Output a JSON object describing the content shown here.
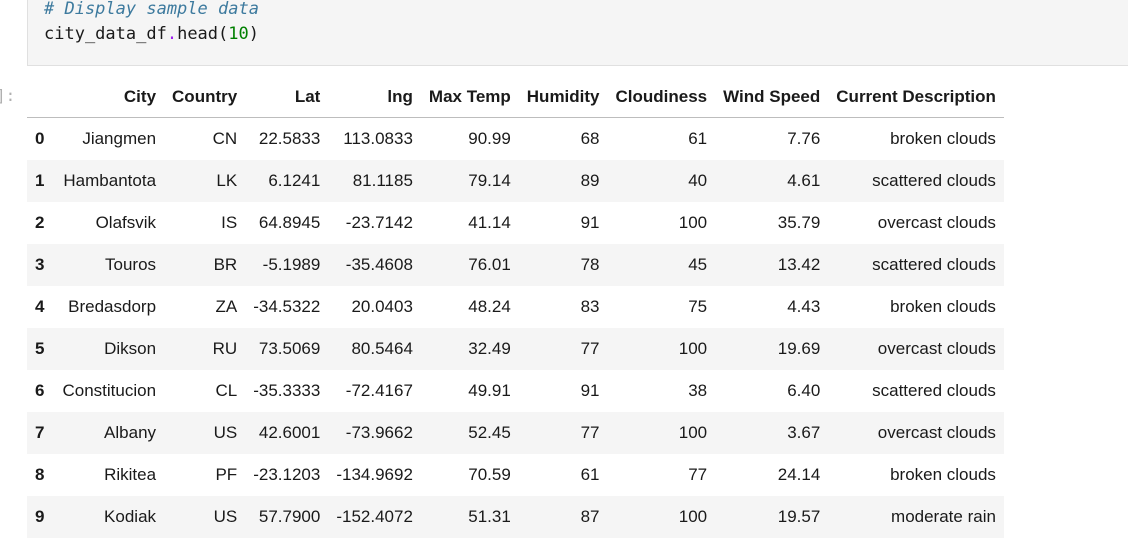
{
  "code_cell": {
    "comment": "# Display sample data",
    "line_var": "city_data_df",
    "line_dot": ".",
    "line_call": "head(",
    "line_arg": "10",
    "line_close": ")"
  },
  "output_prompt": "]:",
  "table": {
    "columns": [
      "",
      "City",
      "Country",
      "Lat",
      "lng",
      "Max Temp",
      "Humidity",
      "Cloudiness",
      "Wind Speed",
      "Current Description"
    ],
    "rows": [
      [
        "0",
        "Jiangmen",
        "CN",
        "22.5833",
        "113.0833",
        "90.99",
        "68",
        "61",
        "7.76",
        "broken clouds"
      ],
      [
        "1",
        "Hambantota",
        "LK",
        "6.1241",
        "81.1185",
        "79.14",
        "89",
        "40",
        "4.61",
        "scattered clouds"
      ],
      [
        "2",
        "Olafsvik",
        "IS",
        "64.8945",
        "-23.7142",
        "41.14",
        "91",
        "100",
        "35.79",
        "overcast clouds"
      ],
      [
        "3",
        "Touros",
        "BR",
        "-5.1989",
        "-35.4608",
        "76.01",
        "78",
        "45",
        "13.42",
        "scattered clouds"
      ],
      [
        "4",
        "Bredasdorp",
        "ZA",
        "-34.5322",
        "20.0403",
        "48.24",
        "83",
        "75",
        "4.43",
        "broken clouds"
      ],
      [
        "5",
        "Dikson",
        "RU",
        "73.5069",
        "80.5464",
        "32.49",
        "77",
        "100",
        "19.69",
        "overcast clouds"
      ],
      [
        "6",
        "Constitucion",
        "CL",
        "-35.3333",
        "-72.4167",
        "49.91",
        "91",
        "38",
        "6.40",
        "scattered clouds"
      ],
      [
        "7",
        "Albany",
        "US",
        "42.6001",
        "-73.9662",
        "52.45",
        "77",
        "100",
        "3.67",
        "overcast clouds"
      ],
      [
        "8",
        "Rikitea",
        "PF",
        "-23.1203",
        "-134.9692",
        "70.59",
        "61",
        "77",
        "24.14",
        "broken clouds"
      ],
      [
        "9",
        "Kodiak",
        "US",
        "57.7900",
        "-152.4072",
        "51.31",
        "87",
        "100",
        "19.57",
        "moderate rain"
      ]
    ]
  }
}
